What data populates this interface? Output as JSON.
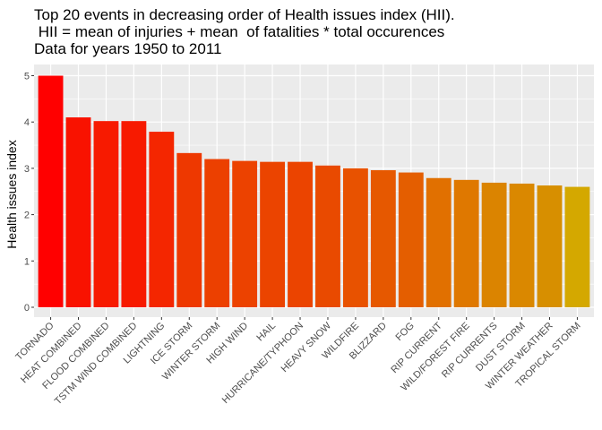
{
  "chart_data": {
    "type": "bar",
    "title": [
      "Top 20 events in decreasing order of Health issues index (HII).",
      " HII = mean of injuries + mean  of fatalities * total occurences",
      "Data for years 1950 to 2011"
    ],
    "xlabel": "",
    "ylabel": "Health issues index",
    "ylim": [
      0,
      5.3
    ],
    "y_ticks": [
      0,
      1,
      2,
      3,
      4,
      5
    ],
    "grid": true,
    "categories": [
      "TORNADO",
      "HEAT COMBINED",
      "FLOOD COMBINED",
      "TSTM WIND COMBINED",
      "LIGHTNING",
      "ICE STORM",
      "WINTER STORM",
      "HIGH WIND",
      "HAIL",
      "HURRICANE/TYPHOON",
      "HEAVY SNOW",
      "WILDFIRE",
      "BLIZZARD",
      "FOG",
      "RIP CURRENT",
      "WILD/FOREST FIRE",
      "RIP CURRENTS",
      "DUST STORM",
      "WINTER WEATHER",
      "TROPICAL STORM"
    ],
    "values": [
      5.0,
      4.1,
      4.02,
      4.02,
      3.79,
      3.33,
      3.2,
      3.16,
      3.14,
      3.14,
      3.06,
      3.0,
      2.96,
      2.91,
      2.79,
      2.75,
      2.69,
      2.67,
      2.63,
      2.6
    ],
    "colors": [
      "#ff0000",
      "#f91200",
      "#f71a00",
      "#f71a00",
      "#f42600",
      "#ee3800",
      "#ec4000",
      "#ec4200",
      "#eb4400",
      "#eb4400",
      "#e94a00",
      "#e85200",
      "#e65800",
      "#e45e00",
      "#e17000",
      "#df7800",
      "#db8400",
      "#da8800",
      "#d78f00",
      "#d4a800"
    ],
    "background": "#ebebeb",
    "gridline_color": "#ffffff"
  }
}
